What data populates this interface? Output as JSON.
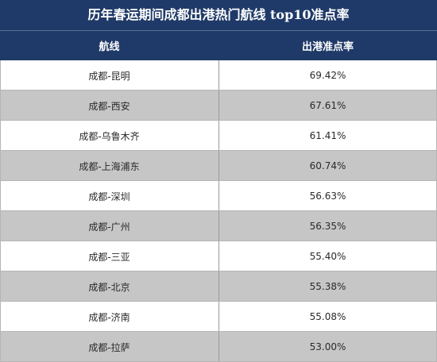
{
  "title": "历年春运期间成都出港热门航线 top10准点率",
  "colors": {
    "header_bg": "#1f3a68",
    "header_text": "#ffffff",
    "row_odd": "#ffffff",
    "row_even": "#c6c6c6"
  },
  "chart_data": {
    "type": "table",
    "title": "历年春运期间成都出港热门航线 top10准点率",
    "columns": [
      "航线",
      "出港准点率"
    ],
    "rows": [
      {
        "route": "成都-昆明",
        "rate": "69.42%"
      },
      {
        "route": "成都-西安",
        "rate": "67.61%"
      },
      {
        "route": "成都-乌鲁木齐",
        "rate": "61.41%"
      },
      {
        "route": "成都-上海浦东",
        "rate": "60.74%"
      },
      {
        "route": "成都-深圳",
        "rate": "56.63%"
      },
      {
        "route": "成都-广州",
        "rate": "56.35%"
      },
      {
        "route": "成都-三亚",
        "rate": "55.40%"
      },
      {
        "route": "成都-北京",
        "rate": "55.38%"
      },
      {
        "route": "成都-济南",
        "rate": "55.08%"
      },
      {
        "route": "成都-拉萨",
        "rate": "53.00%"
      }
    ]
  }
}
